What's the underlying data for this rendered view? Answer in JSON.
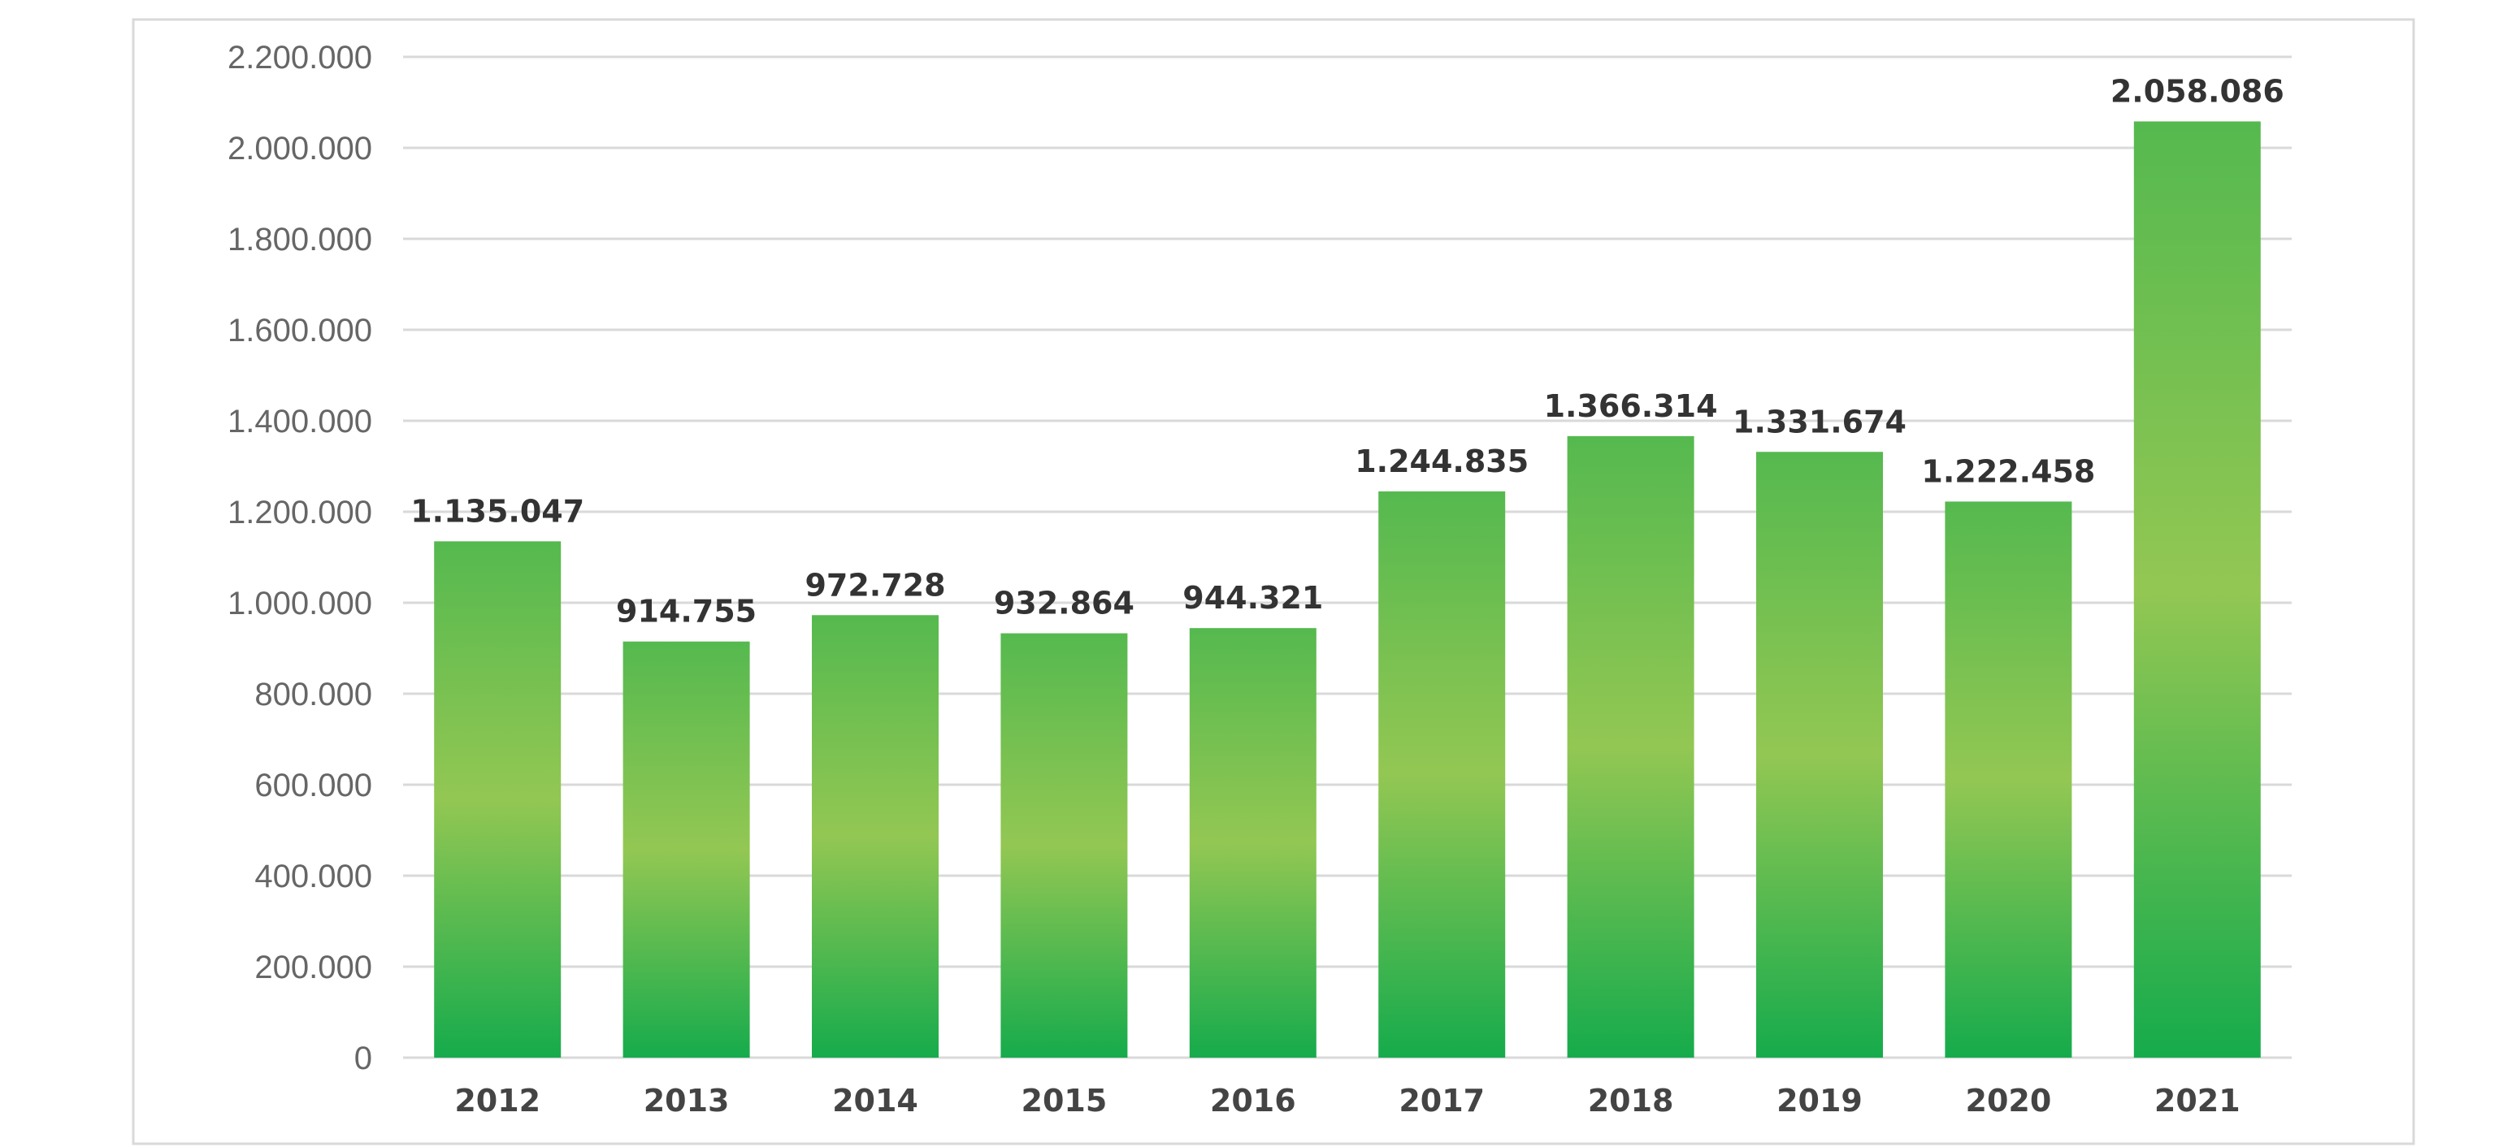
{
  "chart_data": {
    "type": "bar",
    "title": "",
    "xlabel": "",
    "ylabel": "",
    "categories": [
      "2012",
      "2013",
      "2014",
      "2015",
      "2016",
      "2017",
      "2018",
      "2019",
      "2020",
      "2021"
    ],
    "values": [
      1135047,
      914755,
      972728,
      932864,
      944321,
      1244835,
      1366314,
      1331674,
      1222458,
      2058086
    ],
    "value_labels": [
      "1.135.047",
      "914.755",
      "972.728",
      "932.864",
      "944.321",
      "1.244.835",
      "1.366.314",
      "1.331.674",
      "1.222.458",
      "2.058.086"
    ],
    "ylim": [
      0,
      2200000
    ],
    "yticks": [
      0,
      200000,
      400000,
      600000,
      800000,
      1000000,
      1200000,
      1400000,
      1600000,
      1800000,
      2000000,
      2200000
    ],
    "ytick_labels": [
      "0",
      "200.000",
      "400.000",
      "600.000",
      "800.000",
      "1.000.000",
      "1.200.000",
      "1.400.000",
      "1.600.000",
      "1.800.000",
      "2.000.000",
      "2.200.000"
    ],
    "grid": true,
    "legend": "none",
    "colors": {
      "bar_top": "#55b94f",
      "bar_middle": "#93c753",
      "bar_bottom": "#16ab4c",
      "gridline": "#d9d9d9",
      "frame": "#d9d9d9"
    }
  }
}
